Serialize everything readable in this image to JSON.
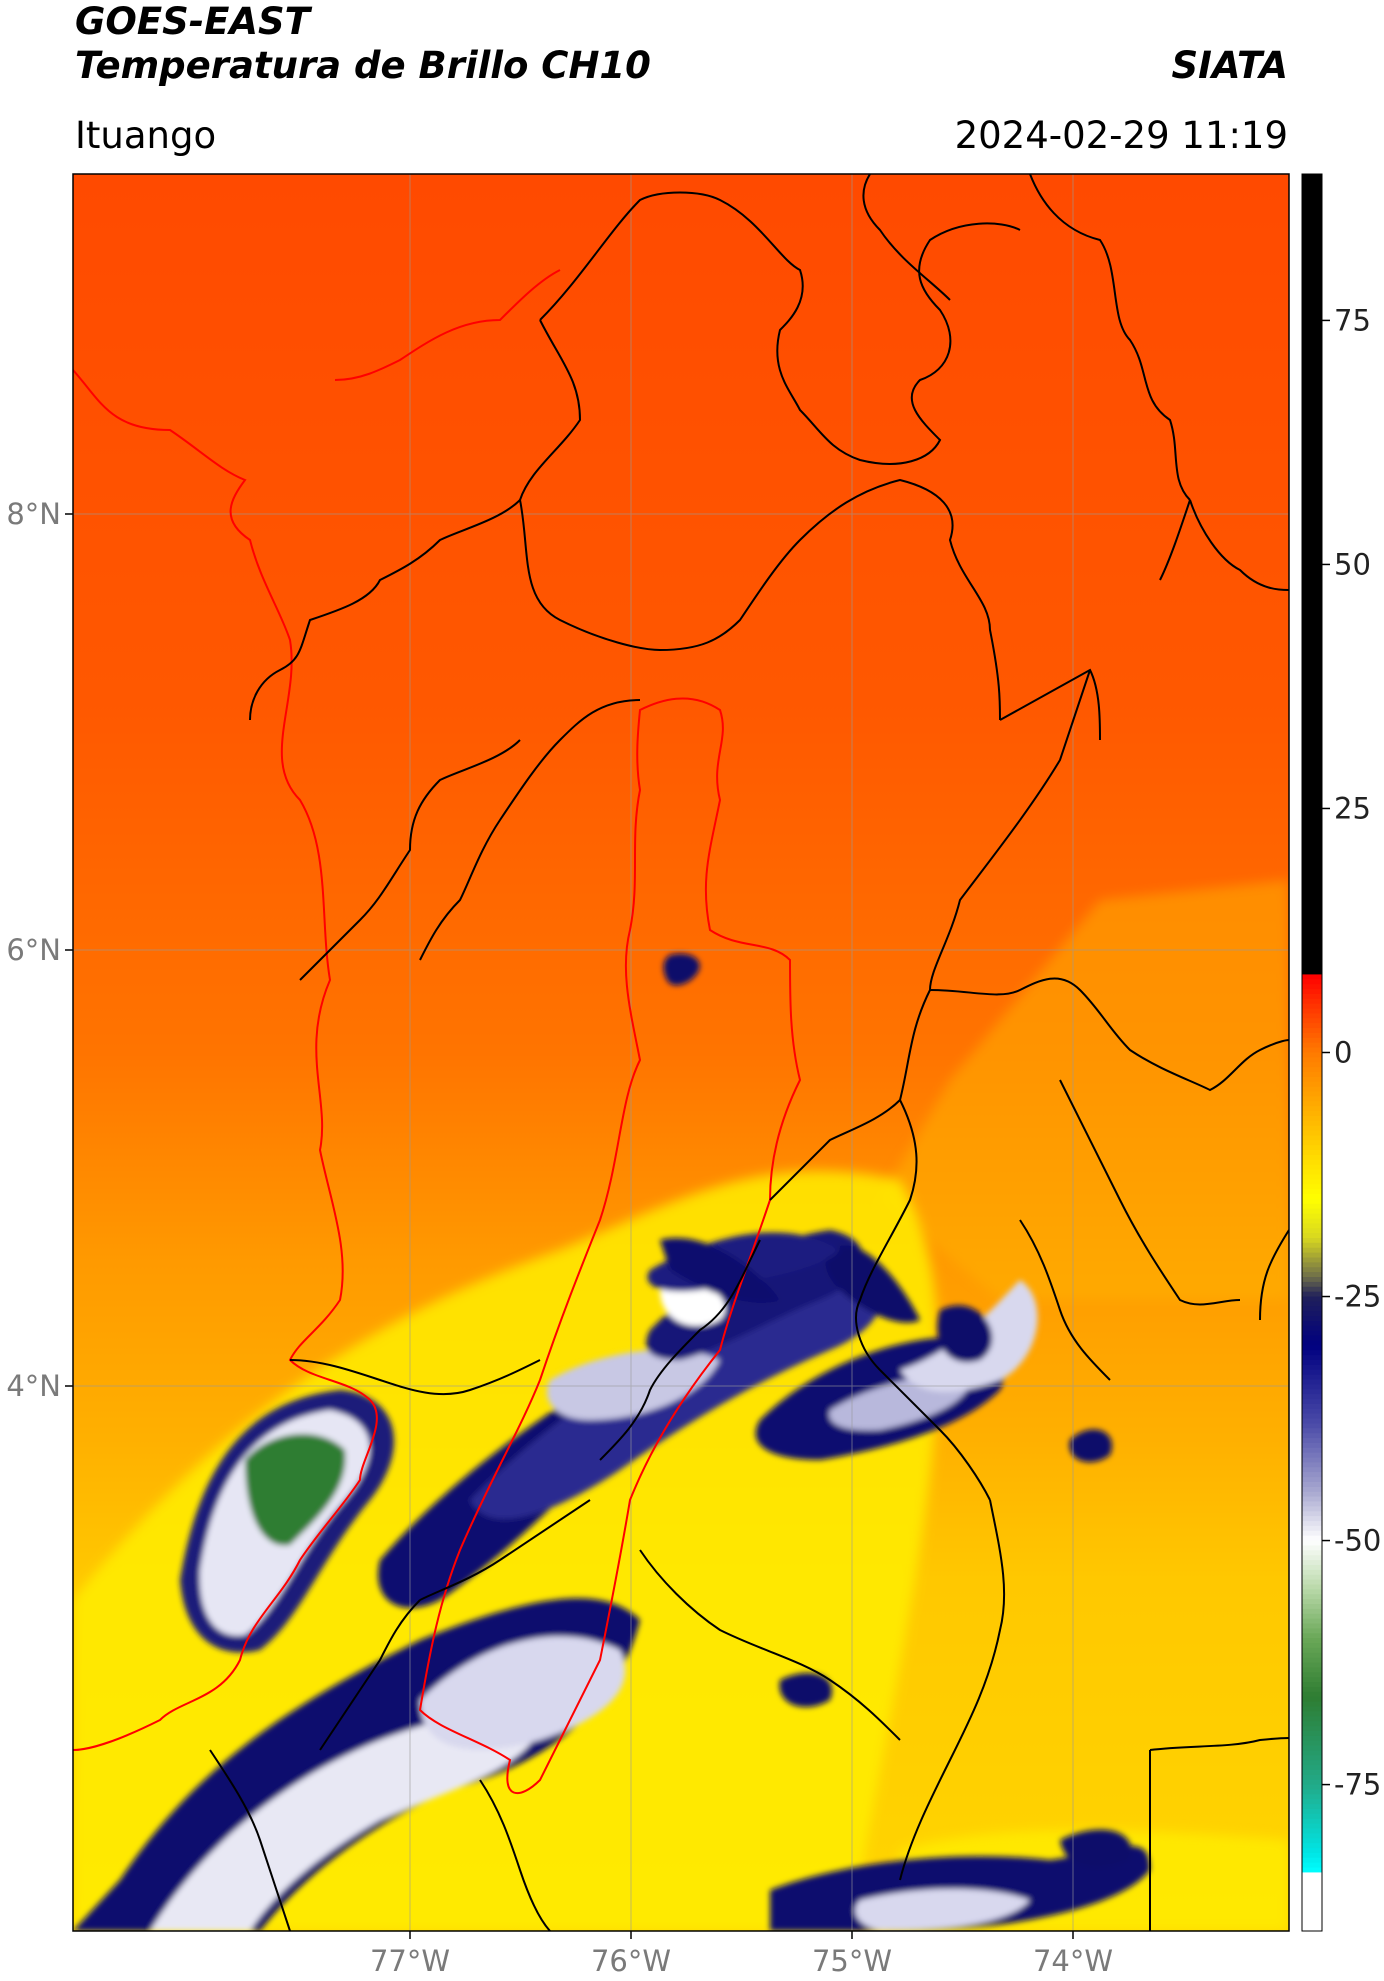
{
  "header": {
    "satellite": "GOES-EAST",
    "product": "Temperatura de Brillo CH10",
    "organization": "SIATA",
    "region": "Ituango",
    "timestamp": "2024-02-29 11:19"
  },
  "map": {
    "lon_range": [
      -78.5,
      -73.0
    ],
    "lat_range": [
      1.0,
      9.5
    ],
    "lon_ticks": [
      {
        "value": -77,
        "label": "77°W"
      },
      {
        "value": -76,
        "label": "76°W"
      },
      {
        "value": -75,
        "label": "75°W"
      },
      {
        "value": -74,
        "label": "74°W"
      }
    ],
    "lat_ticks": [
      {
        "value": 8,
        "label": "8°N"
      },
      {
        "value": 6,
        "label": "6°N"
      },
      {
        "value": 4,
        "label": "4°N"
      }
    ],
    "grid": true,
    "boundary_colors": {
      "departments": "#000000",
      "basin_and_coast": "#ff0000"
    }
  },
  "colorbar": {
    "range": [
      -90,
      90
    ],
    "ticks": [
      {
        "value": 75,
        "label": "75"
      },
      {
        "value": 50,
        "label": "50"
      },
      {
        "value": 25,
        "label": "25"
      },
      {
        "value": 0,
        "label": "0"
      },
      {
        "value": -25,
        "label": "-25"
      },
      {
        "value": -50,
        "label": "-50"
      },
      {
        "value": -75,
        "label": "-75"
      }
    ],
    "stops": [
      {
        "value": 90,
        "color": "#000000"
      },
      {
        "value": 8,
        "color": "#000000"
      },
      {
        "value": 7.9,
        "color": "#ff0000"
      },
      {
        "value": 5,
        "color": "#ff3000"
      },
      {
        "value": 0,
        "color": "#ff7a00"
      },
      {
        "value": -6,
        "color": "#ffb000"
      },
      {
        "value": -11,
        "color": "#ffdd00"
      },
      {
        "value": -15,
        "color": "#ffff00"
      },
      {
        "value": -19,
        "color": "#d8d820"
      },
      {
        "value": -23,
        "color": "#6e6e4a"
      },
      {
        "value": -25,
        "color": "#20205a"
      },
      {
        "value": -30,
        "color": "#000080"
      },
      {
        "value": -38,
        "color": "#4a4aa8"
      },
      {
        "value": -45,
        "color": "#a8a8d0"
      },
      {
        "value": -50,
        "color": "#ffffff"
      },
      {
        "value": -55,
        "color": "#b8d8a8"
      },
      {
        "value": -60,
        "color": "#6aa858"
      },
      {
        "value": -66,
        "color": "#2e7d32"
      },
      {
        "value": -75,
        "color": "#22aa88"
      },
      {
        "value": -82,
        "color": "#00e5e5"
      },
      {
        "value": -84,
        "color": "#00ffff"
      },
      {
        "value": -84.1,
        "color": "#ffffff"
      },
      {
        "value": -90,
        "color": "#ffffff"
      }
    ]
  }
}
